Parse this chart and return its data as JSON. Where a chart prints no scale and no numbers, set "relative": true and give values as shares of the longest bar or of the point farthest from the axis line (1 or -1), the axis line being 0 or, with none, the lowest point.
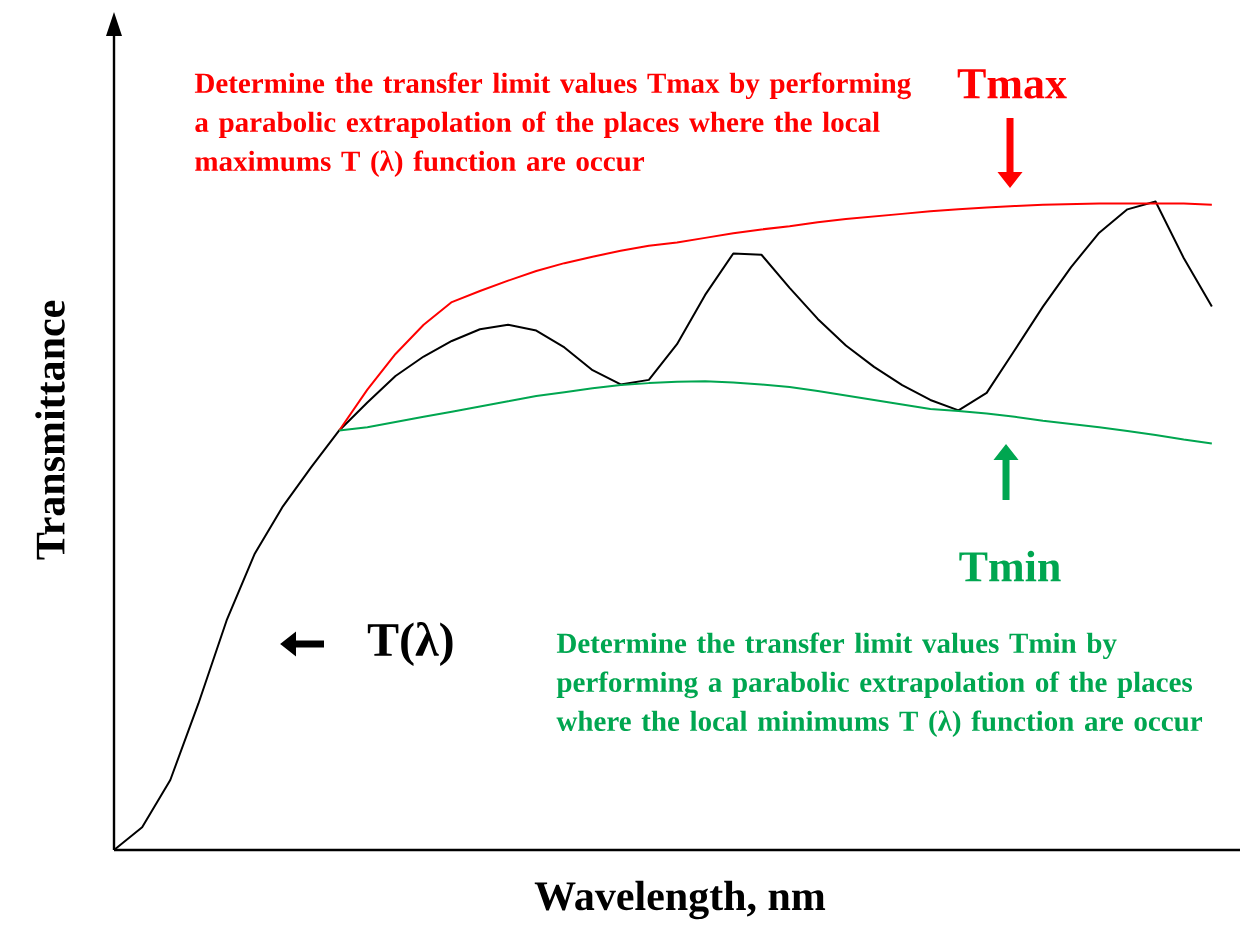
{
  "chart_data": {
    "type": "line",
    "relative": true,
    "xlabel": "Wavelength, nm",
    "ylabel": "Transmittance",
    "marker": "none",
    "line_style": "solid",
    "categories": [
      null,
      null,
      null,
      null,
      null,
      null,
      null,
      null,
      null,
      null,
      null,
      null,
      null,
      null,
      null,
      null,
      null,
      null,
      null,
      null,
      null,
      null,
      null,
      null,
      null,
      null,
      null,
      null,
      null,
      null,
      null,
      null,
      null,
      null,
      null,
      null,
      null,
      null,
      null,
      null
    ],
    "series": [
      {
        "name": "T(λ)",
        "color": "#000000",
        "values": [
          0,
          0.035,
          0.108,
          0.226,
          0.354,
          0.457,
          0.53,
          0.59,
          0.647,
          0.69,
          0.731,
          0.761,
          0.785,
          0.803,
          0.81,
          0.801,
          0.775,
          0.74,
          0.718,
          0.725,
          0.78,
          0.856,
          0.92,
          0.918,
          0.867,
          0.819,
          0.778,
          0.745,
          0.717,
          0.694,
          0.678,
          0.705,
          0.771,
          0.838,
          0.899,
          0.952,
          0.988,
          1,
          0.913,
          0.838
        ]
      },
      {
        "name": "Tmax",
        "color": "#ff0000",
        "values": [
          null,
          null,
          null,
          null,
          null,
          null,
          null,
          null,
          0.647,
          0.71,
          0.765,
          0.81,
          0.845,
          0.862,
          0.878,
          0.893,
          0.905,
          0.915,
          0.924,
          0.932,
          0.937,
          0.944,
          0.951,
          0.957,
          0.962,
          0.968,
          0.973,
          0.977,
          0.981,
          0.985,
          0.988,
          0.991,
          0.993,
          0.995,
          0.996,
          0.997,
          0.997,
          0.997,
          0.997,
          0.995
        ]
      },
      {
        "name": "Tmin",
        "color": "#00a650",
        "values": [
          null,
          null,
          null,
          null,
          null,
          null,
          null,
          null,
          0.647,
          0.652,
          0.66,
          0.668,
          0.676,
          0.684,
          0.692,
          0.7,
          0.706,
          0.712,
          0.717,
          0.72,
          0.722,
          0.723,
          0.721,
          0.718,
          0.714,
          0.708,
          0.701,
          0.694,
          0.687,
          0.68,
          0.677,
          0.673,
          0.668,
          0.662,
          0.657,
          0.652,
          0.646,
          0.64,
          0.633,
          0.627
        ]
      }
    ],
    "annotations": [
      "Determine the transfer limit values Tmax by performing a parabolic extrapolation of the places where the local maximums T (λ) function are occur",
      "Determine the transfer limit values Tmin by performing a parabolic extrapolation of the places where the local minimums T (λ) function are occur"
    ]
  }
}
